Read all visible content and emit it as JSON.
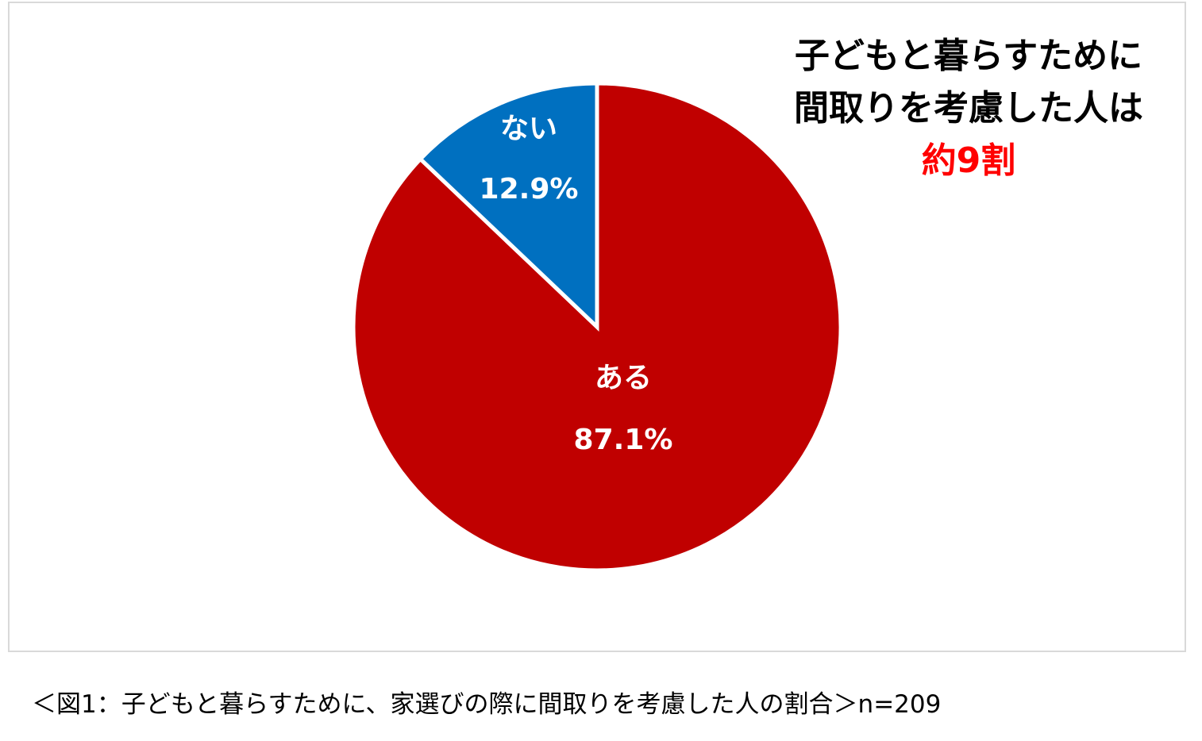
{
  "headline": {
    "line1": "子どもと暮らすために",
    "line2": "間取りを考慮した人は",
    "line3": "約9割",
    "accent_color": "#ff0000"
  },
  "caption": "＜図1：子どもと暮らすために、家選びの際に間取りを考慮した人の割合＞n=209",
  "chart_data": {
    "type": "pie",
    "start_angle": "12 o'clock",
    "direction": "clockwise",
    "slices": [
      {
        "label": "ある",
        "value": 87.1,
        "value_label": "87.1%",
        "color": "#c00000"
      },
      {
        "label": "ない",
        "value": 12.9,
        "value_label": "12.9%",
        "color": "#0070c0"
      }
    ]
  }
}
